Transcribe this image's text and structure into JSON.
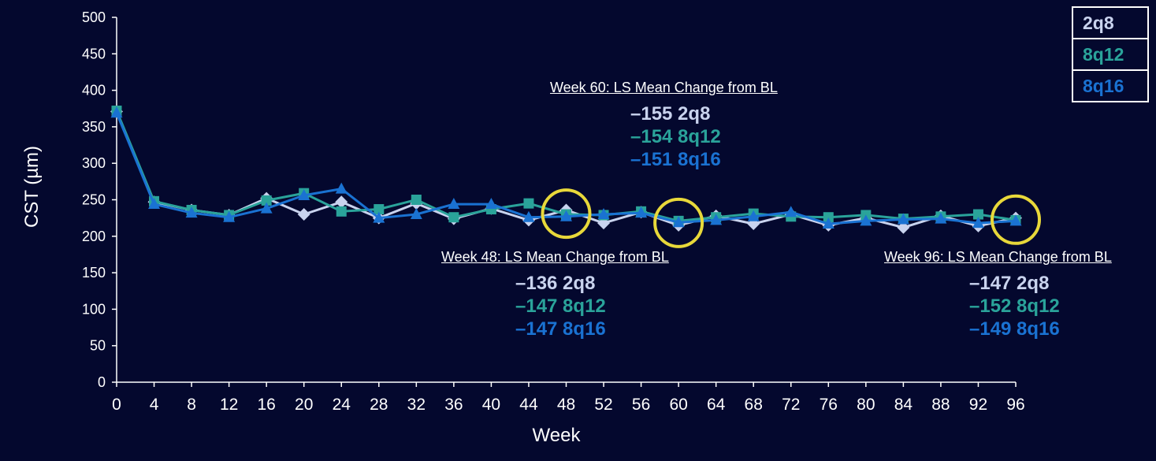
{
  "colors": {
    "background": "#04082e",
    "axis": "#ffffff",
    "highlight_circle": "#e8d83a"
  },
  "chart_data": {
    "type": "line",
    "xlabel": "Week",
    "ylabel": "CST (µm)",
    "xlim": [
      0,
      96
    ],
    "ylim": [
      0,
      500
    ],
    "x": [
      0,
      4,
      8,
      12,
      16,
      20,
      24,
      28,
      32,
      36,
      40,
      44,
      48,
      52,
      56,
      60,
      64,
      68,
      72,
      76,
      80,
      84,
      88,
      92,
      96
    ],
    "x_ticks": [
      "0",
      "4",
      "8",
      "12",
      "16",
      "20",
      "24",
      "28",
      "32",
      "36",
      "40",
      "44",
      "48",
      "52",
      "56",
      "60",
      "64",
      "68",
      "72",
      "76",
      "80",
      "84",
      "88",
      "92",
      "96"
    ],
    "y_ticks": [
      "0",
      "50",
      "100",
      "150",
      "200",
      "250",
      "300",
      "350",
      "400",
      "450",
      "500"
    ],
    "grid": false,
    "series": [
      {
        "name": "2q8",
        "color": "#c9d3ee",
        "marker": "diamond",
        "values": [
          371,
          247,
          236,
          229,
          252,
          230,
          247,
          225,
          245,
          224,
          238,
          222,
          236,
          218,
          233,
          215,
          228,
          217,
          230,
          215,
          225,
          212,
          228,
          214,
          225
        ]
      },
      {
        "name": "8q12",
        "color": "#2aa39a",
        "marker": "square",
        "values": [
          372,
          248,
          236,
          229,
          249,
          259,
          234,
          237,
          250,
          226,
          237,
          245,
          230,
          229,
          234,
          221,
          226,
          231,
          227,
          226,
          229,
          224,
          227,
          230,
          222
        ]
      },
      {
        "name": "8q16",
        "color": "#1a72d2",
        "marker": "triangle",
        "values": [
          369,
          244,
          232,
          226,
          238,
          256,
          265,
          225,
          230,
          244,
          244,
          226,
          227,
          230,
          232,
          219,
          222,
          227,
          233,
          217,
          221,
          223,
          224,
          218,
          221
        ]
      }
    ],
    "highlighted_weeks": [
      48,
      60,
      96
    ]
  },
  "legend": {
    "items": [
      {
        "label": "2q8",
        "color": "#c9d3ee"
      },
      {
        "label": "8q12",
        "color": "#2aa39a"
      },
      {
        "label": "8q16",
        "color": "#1a72d2"
      }
    ]
  },
  "annotations": [
    {
      "title": "Week 60: LS Mean Change from BL",
      "lines": [
        {
          "text": "–155 2q8",
          "color": "#c9d3ee"
        },
        {
          "text": "–154 8q12",
          "color": "#2aa39a"
        },
        {
          "text": "–151 8q16",
          "color": "#1a72d2"
        }
      ]
    },
    {
      "title": "Week 48: LS Mean Change from BL",
      "lines": [
        {
          "text": "–136 2q8",
          "color": "#c9d3ee"
        },
        {
          "text": "–147 8q12",
          "color": "#2aa39a"
        },
        {
          "text": "–147 8q16",
          "color": "#1a72d2"
        }
      ]
    },
    {
      "title": "Week 96: LS Mean Change from BL",
      "lines": [
        {
          "text": "–147 2q8",
          "color": "#c9d3ee"
        },
        {
          "text": "–152 8q12",
          "color": "#2aa39a"
        },
        {
          "text": "–149 8q16",
          "color": "#1a72d2"
        }
      ]
    }
  ]
}
